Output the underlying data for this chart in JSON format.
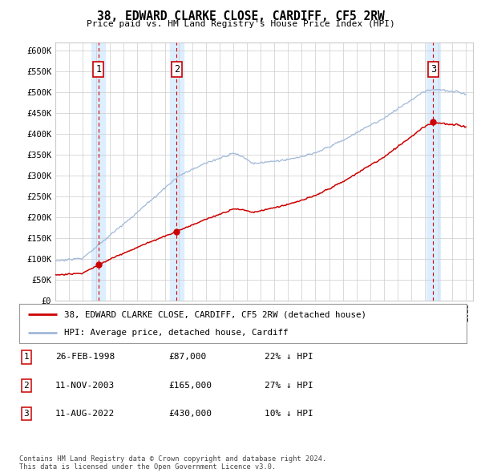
{
  "title": "38, EDWARD CLARKE CLOSE, CARDIFF, CF5 2RW",
  "subtitle": "Price paid vs. HM Land Registry's House Price Index (HPI)",
  "ylabel_ticks": [
    0,
    50000,
    100000,
    150000,
    200000,
    250000,
    300000,
    350000,
    400000,
    450000,
    500000,
    550000,
    600000
  ],
  "ylabel_labels": [
    "£0",
    "£50K",
    "£100K",
    "£150K",
    "£200K",
    "£250K",
    "£300K",
    "£350K",
    "£400K",
    "£450K",
    "£500K",
    "£550K",
    "£600K"
  ],
  "ylim": [
    0,
    620000
  ],
  "xlim_start": 1995.0,
  "xlim_end": 2025.5,
  "sale_dates": [
    1998.15,
    2003.87,
    2022.61
  ],
  "sale_prices": [
    87000,
    165000,
    430000
  ],
  "sale_labels": [
    "1",
    "2",
    "3"
  ],
  "legend_line1": "38, EDWARD CLARKE CLOSE, CARDIFF, CF5 2RW (detached house)",
  "legend_line2": "HPI: Average price, detached house, Cardiff",
  "table_rows": [
    [
      "1",
      "26-FEB-1998",
      "£87,000",
      "22% ↓ HPI"
    ],
    [
      "2",
      "11-NOV-2003",
      "£165,000",
      "27% ↓ HPI"
    ],
    [
      "3",
      "11-AUG-2022",
      "£430,000",
      "10% ↓ HPI"
    ]
  ],
  "footer": "Contains HM Land Registry data © Crown copyright and database right 2024.\nThis data is licensed under the Open Government Licence v3.0.",
  "hpi_color": "#a0b8d8",
  "price_color": "#cc0000",
  "shade_color": "#ddeeff",
  "grid_color": "#cccccc",
  "background_color": "#ffffff"
}
